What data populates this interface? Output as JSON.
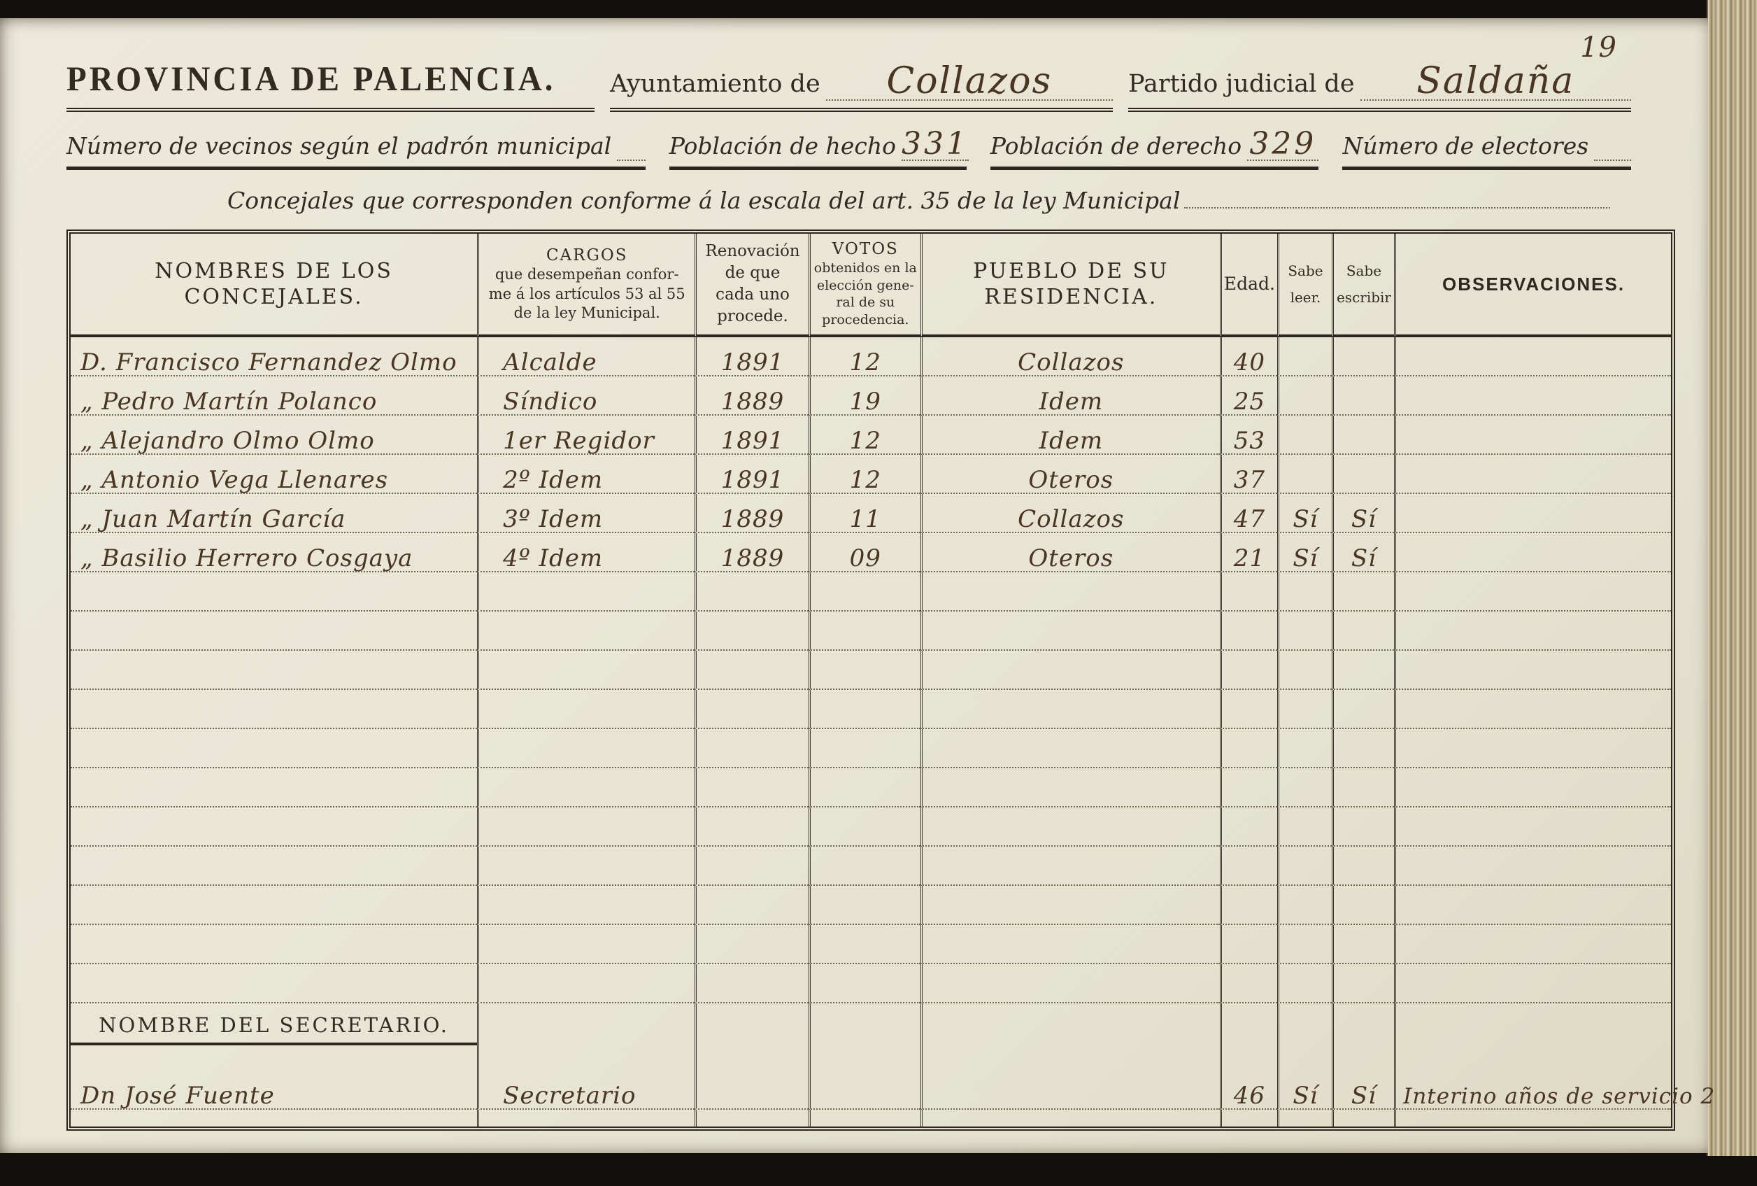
{
  "page_number": "19",
  "header": {
    "province": "PROVINCIA DE PALENCIA.",
    "ayuntamiento_label": "Ayuntamiento de",
    "ayuntamiento_value": "Collazos",
    "partido_label": "Partido judicial de",
    "partido_value": "Saldaña"
  },
  "stats": {
    "vecinos_label": "Número de vecinos según el padrón municipal",
    "vecinos_value": "",
    "hecho_label": "Población de hecho",
    "hecho_value": "331",
    "derecho_label": "Población de derecho",
    "derecho_value": "329",
    "electores_label": "Número de electores",
    "electores_value": ""
  },
  "concejales_line": "Concejales que corresponden conforme á la escala del art. 35 de la ley Municipal",
  "table": {
    "columns": [
      {
        "title": "NOMBRES DE LOS CONCEJALES."
      },
      {
        "title": "CARGOS",
        "sub": "que desempeñan confor-\nme á los artículos 53 al 55\nde la ley Municipal."
      },
      {
        "sub": "Renovación\nde que\ncada uno\nprocede."
      },
      {
        "title": "VOTOS",
        "sub": "obtenidos en la\nelección gene-\nral de su\nprocedencia."
      },
      {
        "title": "PUEBLO DE SU RESIDENCIA."
      },
      {
        "title": "Edad."
      },
      {
        "title": "Sabe\nleer."
      },
      {
        "title": "Sabe\nescribir"
      },
      {
        "title": "OBSERVACIONES."
      }
    ],
    "rows": [
      [
        "D. Francisco Fernandez Olmo",
        "Alcalde",
        "1891",
        "12",
        "Collazos",
        "40",
        "",
        "",
        ""
      ],
      [
        "„  Pedro Martín Polanco",
        "Síndico",
        "1889",
        "19",
        "Idem",
        "25",
        "",
        "",
        ""
      ],
      [
        "„  Alejandro Olmo Olmo",
        "1er Regidor",
        "1891",
        "12",
        "Idem",
        "53",
        "",
        "",
        ""
      ],
      [
        "„  Antonio Vega Llenares",
        "2º Idem",
        "1891",
        "12",
        "Oteros",
        "37",
        "",
        "",
        ""
      ],
      [
        "„  Juan Martín García",
        "3º Idem",
        "1889",
        "11",
        "Collazos",
        "47",
        "Sí",
        "Sí",
        ""
      ],
      [
        "„  Basilio Herrero Cosgaya",
        "4º Idem",
        "1889",
        "09",
        "Oteros",
        "21",
        "Sí",
        "Sí",
        ""
      ]
    ],
    "empty_rows": 11,
    "secretary": {
      "label": "NOMBRE DEL SECRETARIO.",
      "row": [
        "Dn José Fuente",
        "Secretario",
        "",
        "",
        "",
        "46",
        "Sí",
        "Sí",
        "Interino años de servicio 2"
      ]
    }
  }
}
